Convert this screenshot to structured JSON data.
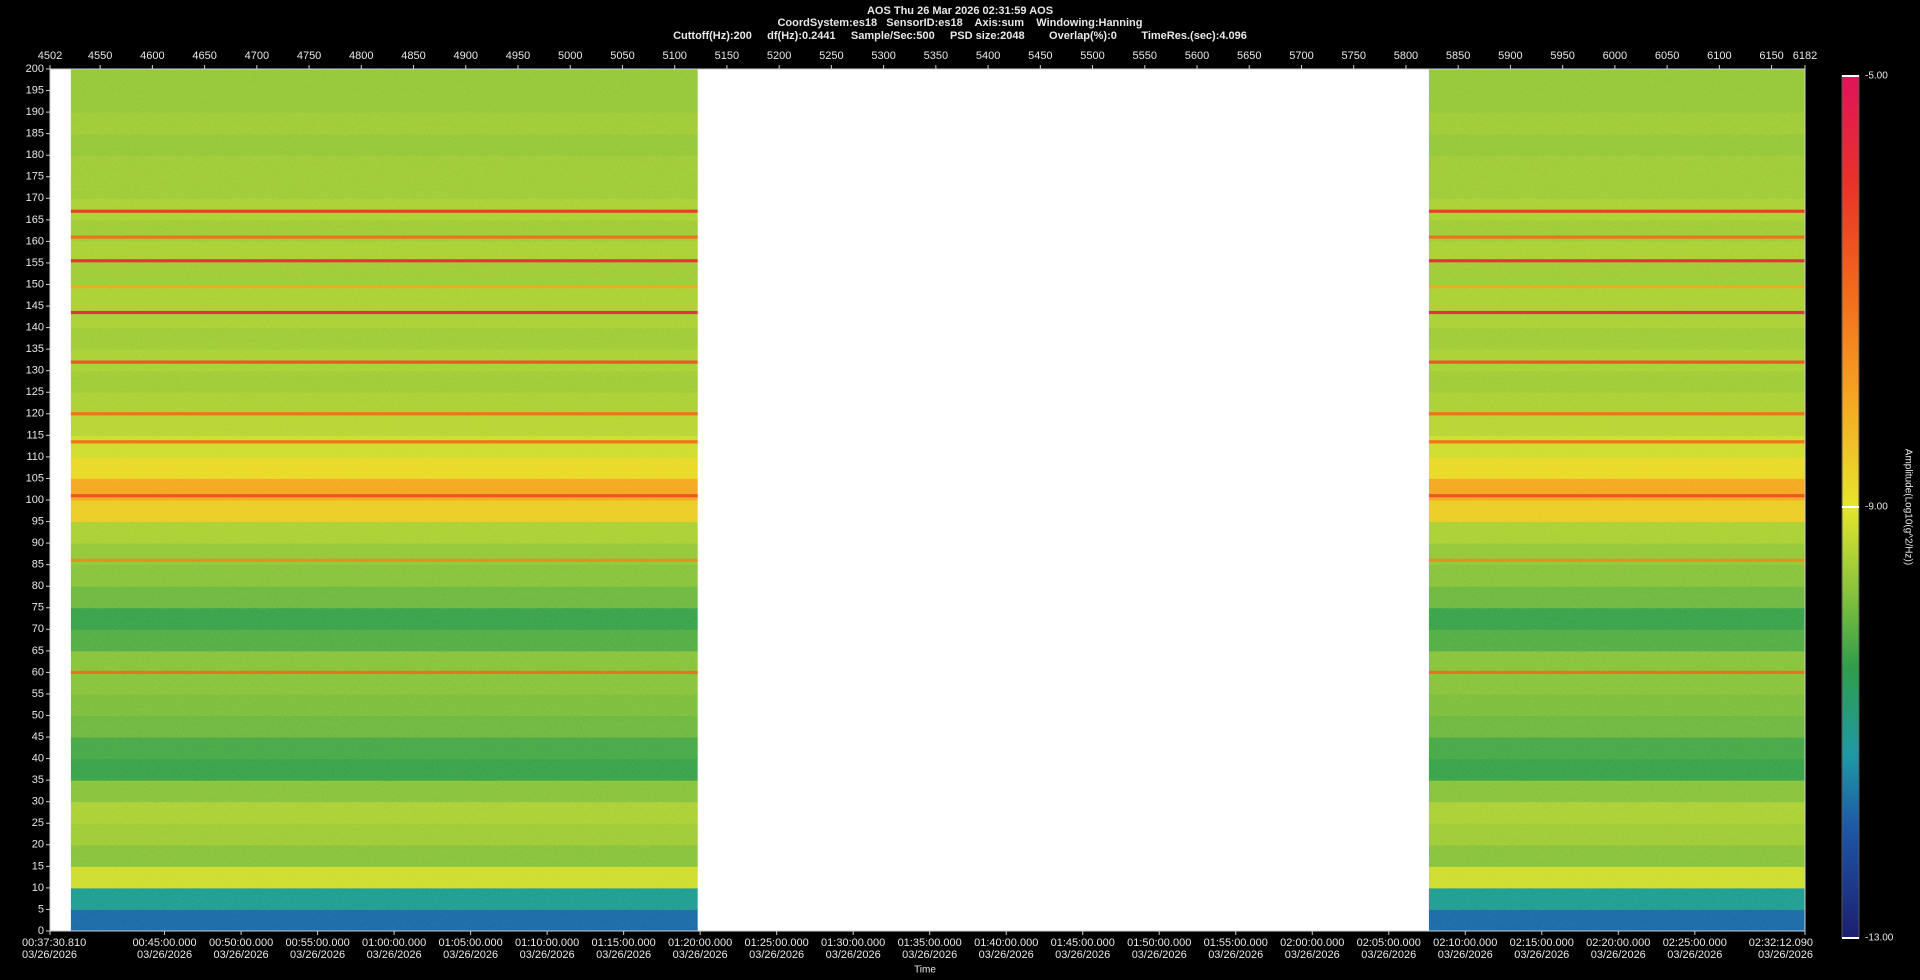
{
  "chart_data": {
    "type": "spectrogram",
    "title": "AOS  Thu 26 Mar 2026 02:31:59  AOS",
    "subtitle": "CoordSystem:es18   SensorID:es18    Axis:sum    Windowing:Hanning",
    "info": "Cuttoff(Hz):200     df(Hz):0.2441     Sample/Sec:500     PSD size:2048        Overlap(%):0        TimeRes.(sec):4.096",
    "x_label": "Time",
    "colorbar_label": "Amplitude(Log10(g^2/Hz))",
    "xlim": [
      4502,
      6182
    ],
    "xticks": [
      4502,
      4550,
      4600,
      4650,
      4700,
      4750,
      4800,
      4850,
      4900,
      4950,
      5000,
      5050,
      5100,
      5150,
      5200,
      5250,
      5300,
      5350,
      5400,
      5450,
      5500,
      5550,
      5600,
      5650,
      5700,
      5750,
      5800,
      5850,
      5900,
      5950,
      6000,
      6050,
      6100,
      6150,
      6182
    ],
    "time_ticks": [
      {
        "value": 4502,
        "label": "00:37:30.810",
        "date": "03/26/2026"
      },
      {
        "value": 4611.67,
        "label": "00:45:00.000",
        "date": "03/26/2026"
      },
      {
        "value": 4684.91,
        "label": "00:50:00.000",
        "date": "03/26/2026"
      },
      {
        "value": 4758.15,
        "label": "00:55:00.000",
        "date": "03/26/2026"
      },
      {
        "value": 4831.4,
        "label": "01:00:00.000",
        "date": "03/26/2026"
      },
      {
        "value": 4904.64,
        "label": "01:05:00.000",
        "date": "03/26/2026"
      },
      {
        "value": 4977.88,
        "label": "01:10:00.000",
        "date": "03/26/2026"
      },
      {
        "value": 5051.12,
        "label": "01:15:00.000",
        "date": "03/26/2026"
      },
      {
        "value": 5124.37,
        "label": "01:20:00.000",
        "date": "03/26/2026"
      },
      {
        "value": 5197.61,
        "label": "01:25:00.000",
        "date": "03/26/2026"
      },
      {
        "value": 5270.85,
        "label": "01:30:00.000",
        "date": "03/26/2026"
      },
      {
        "value": 5344.09,
        "label": "01:35:00.000",
        "date": "03/26/2026"
      },
      {
        "value": 5417.34,
        "label": "01:40:00.000",
        "date": "03/26/2026"
      },
      {
        "value": 5490.58,
        "label": "01:45:00.000",
        "date": "03/26/2026"
      },
      {
        "value": 5563.82,
        "label": "01:50:00.000",
        "date": "03/26/2026"
      },
      {
        "value": 5637.06,
        "label": "01:55:00.000",
        "date": "03/26/2026"
      },
      {
        "value": 5710.3,
        "label": "02:00:00.000",
        "date": "03/26/2026"
      },
      {
        "value": 5783.55,
        "label": "02:05:00.000",
        "date": "03/26/2026"
      },
      {
        "value": 5856.79,
        "label": "02:10:00.000",
        "date": "03/26/2026"
      },
      {
        "value": 5930.03,
        "label": "02:15:00.000",
        "date": "03/26/2026"
      },
      {
        "value": 6003.27,
        "label": "02:20:00.000",
        "date": "03/26/2026"
      },
      {
        "value": 6076.52,
        "label": "02:25:00.000",
        "date": "03/26/2026"
      },
      {
        "value": 6182,
        "label": "02:32:12.090",
        "date": "03/26/2026"
      }
    ],
    "ylim": [
      0,
      200
    ],
    "yticks": [
      0,
      5,
      10,
      15,
      20,
      25,
      30,
      35,
      40,
      45,
      50,
      55,
      60,
      65,
      70,
      75,
      80,
      85,
      90,
      95,
      100,
      105,
      110,
      115,
      120,
      125,
      130,
      135,
      140,
      145,
      150,
      155,
      160,
      165,
      170,
      175,
      180,
      185,
      190,
      195,
      200
    ],
    "segments": [
      [
        4522,
        5122
      ],
      [
        5822,
        6182
      ]
    ],
    "freq_bins": [
      0,
      5,
      10,
      15,
      20,
      25,
      30,
      35,
      40,
      45,
      50,
      55,
      60,
      65,
      70,
      75,
      80,
      85,
      90,
      95,
      100,
      105,
      110,
      115,
      120,
      125,
      130,
      135,
      140,
      145,
      150,
      155,
      160,
      165,
      170,
      175,
      180,
      185,
      190,
      195,
      200
    ],
    "amplitude": [
      -11.8,
      -11.1,
      -9.2,
      -9.8,
      -9.6,
      -9.5,
      -9.8,
      -10.4,
      -10.3,
      -10.0,
      -9.9,
      -9.8,
      -9.8,
      -10.2,
      -10.4,
      -10.0,
      -9.8,
      -9.7,
      -9.5,
      -8.6,
      -8.0,
      -8.8,
      -9.2,
      -9.4,
      -9.5,
      -9.6,
      -9.5,
      -9.6,
      -9.5,
      -9.5,
      -9.6,
      -9.5,
      -9.6,
      -9.5,
      -9.6,
      -9.6,
      -9.7,
      -9.6,
      -9.7,
      -9.7
    ],
    "lines": [
      {
        "freq": 167,
        "amplitude": -6.0
      },
      {
        "freq": 161,
        "amplitude": -7.0
      },
      {
        "freq": 155.5,
        "amplitude": -5.5
      },
      {
        "freq": 149.5,
        "amplitude": -8.0
      },
      {
        "freq": 143.5,
        "amplitude": -5.5
      },
      {
        "freq": 132,
        "amplitude": -6.5
      },
      {
        "freq": 120,
        "amplitude": -7.0
      },
      {
        "freq": 113.5,
        "amplitude": -7.0
      },
      {
        "freq": 101,
        "amplitude": -6.5
      },
      {
        "freq": 86,
        "amplitude": -7.5
      },
      {
        "freq": 60,
        "amplitude": -7.0
      }
    ],
    "clim": [
      -13,
      -5
    ],
    "cticks": [
      {
        "value": -5,
        "label": "-5.00"
      },
      {
        "value": -9,
        "label": "-9.00"
      },
      {
        "value": -13,
        "label": "-13.00"
      }
    ],
    "colormap": [
      {
        "value": -13,
        "color": "#1b1f6e"
      },
      {
        "value": -12,
        "color": "#1f55a5"
      },
      {
        "value": -11.3,
        "color": "#1f9aa5"
      },
      {
        "value": -10.5,
        "color": "#2f9c4c"
      },
      {
        "value": -9.8,
        "color": "#86c23c"
      },
      {
        "value": -9,
        "color": "#e6e62c"
      },
      {
        "value": -8,
        "color": "#f5a623"
      },
      {
        "value": -7,
        "color": "#f26a1b"
      },
      {
        "value": -6,
        "color": "#e8322a"
      },
      {
        "value": -5,
        "color": "#e0145a"
      }
    ],
    "background": "#ffffff"
  }
}
